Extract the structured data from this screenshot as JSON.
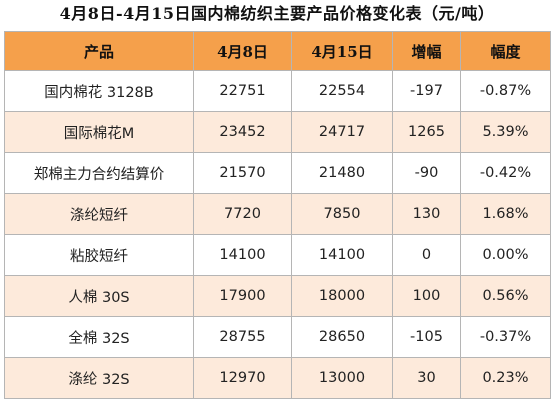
{
  "title": "4月8日-4月15日国内棉纺织主要产品价格变化表（元/吨）",
  "colors": {
    "header_bg": "#f5a04b",
    "row_alt_bg": "#fdeadb",
    "row_bg": "#ffffff",
    "border": "#b5b5b5"
  },
  "chart_data": {
    "type": "table",
    "title": "4月8日-4月15日国内棉纺织主要产品价格变化表（元/吨）",
    "columns": [
      "产品",
      "4月8日",
      "4月15日",
      "增幅",
      "幅度"
    ],
    "rows": [
      {
        "product": "国内棉花 3128B",
        "apr8": "22751",
        "apr15": "22554",
        "change": "-197",
        "pct": "-0.87%"
      },
      {
        "product": "国际棉花M",
        "apr8": "23452",
        "apr15": "24717",
        "change": "1265",
        "pct": "5.39%"
      },
      {
        "product": "郑棉主力合约结算价",
        "apr8": "21570",
        "apr15": "21480",
        "change": "-90",
        "pct": "-0.42%"
      },
      {
        "product": "涤纶短纤",
        "apr8": "7720",
        "apr15": "7850",
        "change": "130",
        "pct": "1.68%"
      },
      {
        "product": "粘胶短纤",
        "apr8": "14100",
        "apr15": "14100",
        "change": "0",
        "pct": "0.00%"
      },
      {
        "product": "人棉 30S",
        "apr8": "17900",
        "apr15": "18000",
        "change": "100",
        "pct": "0.56%"
      },
      {
        "product": "全棉 32S",
        "apr8": "28755",
        "apr15": "28650",
        "change": "-105",
        "pct": "-0.37%"
      },
      {
        "product": "涤纶 32S",
        "apr8": "12970",
        "apr15": "13000",
        "change": "30",
        "pct": "0.23%"
      }
    ]
  }
}
